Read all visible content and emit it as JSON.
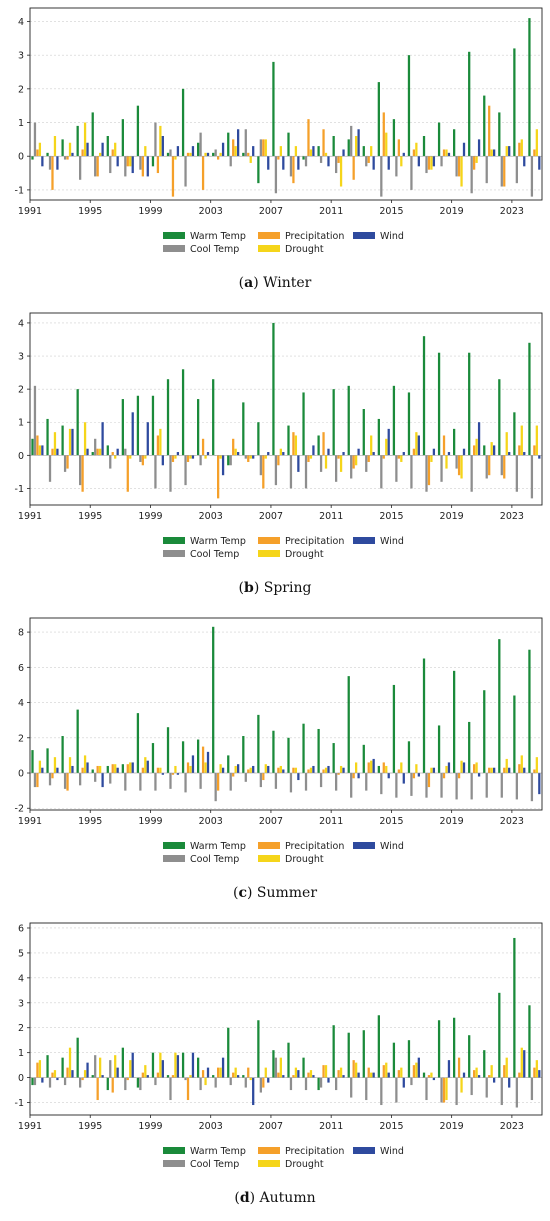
{
  "legend": {
    "warm": "Warm Temp",
    "cool": "Cool Temp",
    "precip": "Precipitation",
    "drought": "Drought",
    "wind": "Wind"
  },
  "colors": {
    "warm": "#1a8a3a",
    "cool": "#8e8e8e",
    "precip": "#f5a02a",
    "drought": "#f5d51a",
    "wind": "#2e4a9e"
  },
  "chart_data": [
    {
      "type": "bar",
      "panel": "a",
      "caption_letter": "a",
      "caption_title": "Winter",
      "x": [
        1991,
        1992,
        1993,
        1994,
        1995,
        1996,
        1997,
        1998,
        1999,
        2000,
        2001,
        2002,
        2003,
        2004,
        2005,
        2006,
        2007,
        2008,
        2009,
        2010,
        2011,
        2012,
        2013,
        2014,
        2015,
        2016,
        2017,
        2018,
        2019,
        2020,
        2021,
        2022,
        2023,
        2024
      ],
      "xticks": [
        1991,
        1995,
        1999,
        2003,
        2007,
        2011,
        2015,
        2019,
        2023
      ],
      "ylim": [
        -1.3,
        4.4
      ],
      "yticks": [
        -1,
        0,
        1,
        2,
        3,
        4
      ],
      "grid": true,
      "legend_position": "bottom-center",
      "series": [
        {
          "name": "Warm Temp",
          "key": "warm",
          "values": [
            -0.1,
            0.1,
            0.5,
            0.9,
            1.3,
            0.6,
            1.1,
            1.5,
            -0.3,
            0.1,
            2.0,
            0.4,
            0.1,
            0.7,
            0.1,
            -0.8,
            2.8,
            0.7,
            -0.1,
            0.3,
            0.6,
            0.5,
            0.3,
            2.2,
            1.1,
            3.0,
            0.6,
            1.0,
            0.8,
            3.1,
            1.8,
            1.3,
            3.2,
            4.1
          ]
        },
        {
          "name": "Cool Temp",
          "key": "cool",
          "values": [
            1.0,
            -0.4,
            -0.1,
            -0.7,
            -0.6,
            -0.5,
            -0.6,
            -0.4,
            1.0,
            0.2,
            -0.9,
            0.7,
            0.2,
            -0.3,
            0.8,
            0.5,
            -1.1,
            -0.6,
            -0.3,
            -0.2,
            -0.5,
            0.9,
            -0.3,
            -1.2,
            -0.6,
            -1.0,
            -0.5,
            -0.3,
            -0.6,
            -1.1,
            -0.8,
            -0.9,
            -0.8,
            -1.2
          ]
        },
        {
          "name": "Precipitation",
          "key": "precip",
          "values": [
            0.2,
            -1.0,
            -0.1,
            0.2,
            -0.6,
            0.2,
            -0.3,
            -0.6,
            -0.5,
            -1.2,
            0.1,
            -1.0,
            -0.1,
            0.5,
            0.1,
            0.5,
            -0.1,
            -0.8,
            1.1,
            0.8,
            -0.2,
            -0.7,
            -0.2,
            1.3,
            0.5,
            0.2,
            -0.4,
            0.2,
            -0.6,
            -0.4,
            1.5,
            -0.9,
            0.4,
            0.2
          ]
        },
        {
          "name": "Drought",
          "key": "drought",
          "values": [
            0.4,
            0.6,
            0.4,
            1.0,
            0.1,
            0.4,
            -0.3,
            0.3,
            0.9,
            -0.1,
            0.1,
            0.1,
            0.1,
            0.3,
            -0.2,
            0.5,
            0.3,
            0.3,
            0.2,
            0.1,
            -0.9,
            0.6,
            0.3,
            0.7,
            -0.3,
            0.4,
            -0.4,
            0.2,
            -0.9,
            -0.2,
            0.2,
            0.3,
            0.5,
            0.8
          ]
        },
        {
          "name": "Wind",
          "key": "wind",
          "values": [
            -0.3,
            -0.4,
            0.1,
            0.4,
            0.4,
            -0.3,
            -0.5,
            -0.6,
            0.6,
            0.3,
            0.3,
            0.1,
            0.4,
            0.8,
            0.3,
            -0.4,
            -0.4,
            -0.4,
            0.3,
            -0.3,
            0.2,
            0.8,
            -0.4,
            -0.4,
            0.1,
            -0.3,
            -0.3,
            0.1,
            0.4,
            0.5,
            0.2,
            0.3,
            -0.3,
            -0.4
          ]
        }
      ]
    },
    {
      "type": "bar",
      "panel": "b",
      "caption_letter": "b",
      "caption_title": "Spring",
      "x": [
        1991,
        1992,
        1993,
        1994,
        1995,
        1996,
        1997,
        1998,
        1999,
        2000,
        2001,
        2002,
        2003,
        2004,
        2005,
        2006,
        2007,
        2008,
        2009,
        2010,
        2011,
        2012,
        2013,
        2014,
        2015,
        2016,
        2017,
        2018,
        2019,
        2020,
        2021,
        2022,
        2023,
        2024
      ],
      "xticks": [
        1991,
        1995,
        1999,
        2003,
        2007,
        2011,
        2015,
        2019,
        2023
      ],
      "ylim": [
        -1.5,
        4.3
      ],
      "yticks": [
        -1,
        0,
        1,
        2,
        3,
        4
      ],
      "grid": true,
      "legend_position": "bottom-center",
      "series": [
        {
          "name": "Warm Temp",
          "key": "warm",
          "values": [
            0.5,
            1.1,
            0.9,
            2.0,
            0.1,
            0.3,
            1.7,
            1.8,
            1.8,
            2.3,
            2.6,
            1.7,
            2.3,
            -0.3,
            1.6,
            1.0,
            4.0,
            0.9,
            1.9,
            0.6,
            2.0,
            2.1,
            1.4,
            1.1,
            2.1,
            1.9,
            3.6,
            3.1,
            0.8,
            3.1,
            0.3,
            2.3,
            1.3,
            3.4
          ]
        },
        {
          "name": "Cool Temp",
          "key": "cool",
          "values": [
            2.1,
            -0.8,
            -0.5,
            -0.9,
            0.5,
            -0.4,
            0.2,
            -0.2,
            -1.0,
            -1.1,
            -0.9,
            -0.3,
            0.0,
            -0.3,
            -0.1,
            -0.6,
            -0.9,
            -1.0,
            -1.0,
            -0.5,
            -0.8,
            -0.7,
            -0.5,
            -1.0,
            -0.8,
            -1.0,
            -1.1,
            -0.8,
            -0.4,
            -1.1,
            -0.7,
            -0.6,
            -1.1,
            -1.3
          ]
        },
        {
          "name": "Precipitation",
          "key": "precip",
          "values": [
            0.6,
            0.2,
            -0.4,
            -1.1,
            0.2,
            0.1,
            -1.1,
            -0.3,
            0.6,
            -0.2,
            -0.2,
            0.5,
            -1.3,
            0.5,
            -0.2,
            -1.0,
            -0.3,
            0.7,
            -0.2,
            0.7,
            -0.1,
            -0.4,
            -0.2,
            -0.1,
            -0.1,
            0.2,
            -0.9,
            0.6,
            -0.6,
            0.3,
            -0.6,
            -0.7,
            0.3,
            0.3
          ]
        },
        {
          "name": "Drought",
          "key": "drought",
          "values": [
            0.3,
            0.7,
            0.8,
            1.0,
            0.2,
            -0.1,
            -0.1,
            -0.1,
            0.8,
            -0.1,
            -0.1,
            -0.1,
            -0.1,
            0.2,
            -0.1,
            -0.1,
            0.2,
            0.6,
            -0.1,
            -0.4,
            -0.5,
            -0.3,
            0.6,
            0.5,
            -0.2,
            0.7,
            -0.2,
            -0.4,
            -0.7,
            0.5,
            0.4,
            0.7,
            0.9,
            0.9
          ]
        },
        {
          "name": "Wind",
          "key": "wind",
          "values": [
            0.3,
            0.2,
            0.8,
            0.2,
            1.0,
            0.2,
            1.3,
            1.0,
            -0.3,
            0.1,
            -0.1,
            0.1,
            -0.6,
            0.1,
            -0.1,
            0.1,
            0.1,
            -0.5,
            0.3,
            0.2,
            0.1,
            0.2,
            0.1,
            0.8,
            0.1,
            0.6,
            0.2,
            0.1,
            0.2,
            1.0,
            0.3,
            0.1,
            0.1,
            -0.1
          ]
        }
      ]
    },
    {
      "type": "bar",
      "panel": "c",
      "caption_letter": "c",
      "caption_title": "Summer",
      "x": [
        1991,
        1992,
        1993,
        1994,
        1995,
        1996,
        1997,
        1998,
        1999,
        2000,
        2001,
        2002,
        2003,
        2004,
        2005,
        2006,
        2007,
        2008,
        2009,
        2010,
        2011,
        2012,
        2013,
        2014,
        2015,
        2016,
        2017,
        2018,
        2019,
        2020,
        2021,
        2022,
        2023,
        2024
      ],
      "xticks": [
        1991,
        1995,
        1999,
        2003,
        2007,
        2011,
        2015,
        2019,
        2023
      ],
      "ylim": [
        -2.1,
        8.8
      ],
      "yticks": [
        -2,
        0,
        2,
        4,
        6,
        8
      ],
      "grid": true,
      "legend_position": "bottom-center",
      "series": [
        {
          "name": "Warm Temp",
          "key": "warm",
          "values": [
            1.3,
            1.4,
            2.1,
            3.6,
            0.2,
            0.4,
            0.5,
            3.4,
            1.7,
            2.6,
            1.8,
            1.9,
            8.3,
            1.0,
            2.1,
            3.3,
            2.4,
            2.0,
            2.8,
            2.5,
            1.7,
            5.5,
            1.6,
            0.4,
            5.0,
            1.8,
            6.5,
            2.7,
            5.8,
            2.9,
            4.7,
            7.6,
            4.4,
            7.0
          ]
        },
        {
          "name": "Cool Temp",
          "key": "cool",
          "values": [
            -0.8,
            -0.7,
            -0.9,
            -0.7,
            -0.5,
            -0.6,
            -1.0,
            -1.0,
            -1.0,
            -0.9,
            -1.1,
            -0.9,
            -1.6,
            -1.0,
            -0.5,
            -0.8,
            -0.9,
            -1.1,
            -1.0,
            -0.8,
            -1.0,
            -1.4,
            -1.0,
            -1.2,
            -1.4,
            -1.3,
            -1.4,
            -1.4,
            -1.5,
            -1.5,
            -1.4,
            -1.4,
            -1.5,
            -1.6
          ]
        },
        {
          "name": "Precipitation",
          "key": "precip",
          "values": [
            -0.8,
            -0.3,
            -1.0,
            0.3,
            0.4,
            0.5,
            0.5,
            0.3,
            0.3,
            -0.1,
            0.6,
            1.5,
            -1.0,
            -0.2,
            0.2,
            -0.4,
            0.3,
            0.3,
            0.2,
            0.2,
            -0.1,
            -0.3,
            0.6,
            0.6,
            0.2,
            -0.3,
            -0.8,
            -0.3,
            -0.3,
            0.5,
            0.3,
            0.3,
            0.5,
            0.2
          ]
        },
        {
          "name": "Drought",
          "key": "drought",
          "values": [
            0.7,
            0.9,
            0.9,
            1.0,
            0.4,
            0.5,
            0.6,
            0.9,
            0.3,
            0.4,
            0.4,
            0.6,
            0.5,
            0.4,
            0.3,
            0.5,
            0.4,
            0.3,
            0.3,
            0.3,
            0.4,
            0.6,
            0.7,
            0.4,
            0.6,
            0.5,
            0.3,
            0.4,
            0.7,
            0.6,
            0.3,
            0.8,
            1.0,
            0.9
          ]
        },
        {
          "name": "Wind",
          "key": "wind",
          "values": [
            0.3,
            0.3,
            0.4,
            0.6,
            -0.8,
            0.3,
            0.6,
            0.7,
            -0.1,
            -0.1,
            1.0,
            1.2,
            0.3,
            0.5,
            0.4,
            0.4,
            0.2,
            -0.4,
            0.4,
            0.4,
            0.3,
            -0.3,
            0.8,
            -0.3,
            -0.6,
            -0.2,
            0.3,
            0.6,
            0.6,
            -0.2,
            0.3,
            0.3,
            0.3,
            -1.2
          ]
        }
      ]
    },
    {
      "type": "bar",
      "panel": "d",
      "caption_letter": "d",
      "caption_title": "Autumn",
      "x": [
        1991,
        1992,
        1993,
        1994,
        1995,
        1996,
        1997,
        1998,
        1999,
        2000,
        2001,
        2002,
        2003,
        2004,
        2005,
        2006,
        2007,
        2008,
        2009,
        2010,
        2011,
        2012,
        2013,
        2014,
        2015,
        2016,
        2017,
        2018,
        2019,
        2020,
        2021,
        2022,
        2023,
        2024
      ],
      "xticks": [
        1991,
        1995,
        1999,
        2003,
        2007,
        2011,
        2015,
        2019,
        2023
      ],
      "ylim": [
        -1.5,
        6.2
      ],
      "yticks": [
        -1,
        0,
        1,
        2,
        3,
        4,
        5,
        6
      ],
      "grid": true,
      "legend_position": "bottom-center",
      "series": [
        {
          "name": "Warm Temp",
          "key": "warm",
          "values": [
            -0.3,
            0.9,
            0.8,
            1.6,
            0.1,
            -0.5,
            1.2,
            -0.4,
            1.0,
            0.1,
            1.0,
            0.8,
            0.1,
            2.0,
            0.1,
            2.3,
            1.1,
            1.4,
            0.8,
            -0.5,
            2.1,
            1.8,
            1.9,
            2.5,
            1.4,
            1.5,
            0.2,
            2.3,
            2.4,
            1.7,
            1.1,
            3.4,
            5.6,
            2.9
          ]
        },
        {
          "name": "Cool Temp",
          "key": "cool",
          "values": [
            -0.3,
            -0.4,
            -0.3,
            -0.4,
            0.9,
            0.7,
            -0.5,
            -0.5,
            -0.3,
            -0.9,
            -0.1,
            -0.5,
            -0.4,
            -0.3,
            -0.4,
            -0.6,
            0.8,
            -0.5,
            -0.5,
            -0.4,
            -0.5,
            -0.8,
            -0.9,
            -1.1,
            -1.0,
            -0.3,
            -0.9,
            -1.0,
            -1.1,
            -0.7,
            -0.8,
            -1.1,
            -1.2,
            -0.9
          ]
        },
        {
          "name": "Precipitation",
          "key": "precip",
          "values": [
            0.6,
            0.2,
            0.4,
            -0.1,
            -0.9,
            -0.6,
            -0.1,
            0.2,
            0.2,
            0.1,
            -0.9,
            0.3,
            0.4,
            0.2,
            0.4,
            -0.4,
            0.2,
            0.1,
            0.2,
            0.5,
            0.3,
            0.7,
            0.4,
            0.5,
            0.3,
            0.5,
            0.1,
            -1.0,
            0.8,
            0.3,
            0.1,
            0.5,
            0.2,
            0.4
          ]
        },
        {
          "name": "Drought",
          "key": "drought",
          "values": [
            0.7,
            0.3,
            1.2,
            0.3,
            0.8,
            0.9,
            0.7,
            0.5,
            1.0,
            1.0,
            0.1,
            -0.3,
            0.4,
            0.4,
            -0.1,
            0.4,
            0.8,
            0.4,
            0.3,
            0.5,
            0.4,
            0.6,
            0.2,
            0.6,
            0.4,
            0.6,
            0.2,
            -0.9,
            -0.6,
            0.4,
            0.5,
            0.8,
            1.2,
            0.7
          ]
        },
        {
          "name": "Wind",
          "key": "wind",
          "values": [
            -0.2,
            -0.1,
            0.3,
            0.6,
            0.1,
            0.4,
            1.0,
            0.1,
            0.7,
            0.9,
            1.0,
            0.4,
            0.8,
            0.1,
            -1.1,
            -0.2,
            0.1,
            0.3,
            0.1,
            -0.2,
            0.1,
            0.2,
            0.2,
            0.2,
            -0.4,
            0.8,
            -0.1,
            0.7,
            0.2,
            0.1,
            -0.2,
            -0.4,
            1.1,
            0.3
          ]
        }
      ]
    }
  ]
}
